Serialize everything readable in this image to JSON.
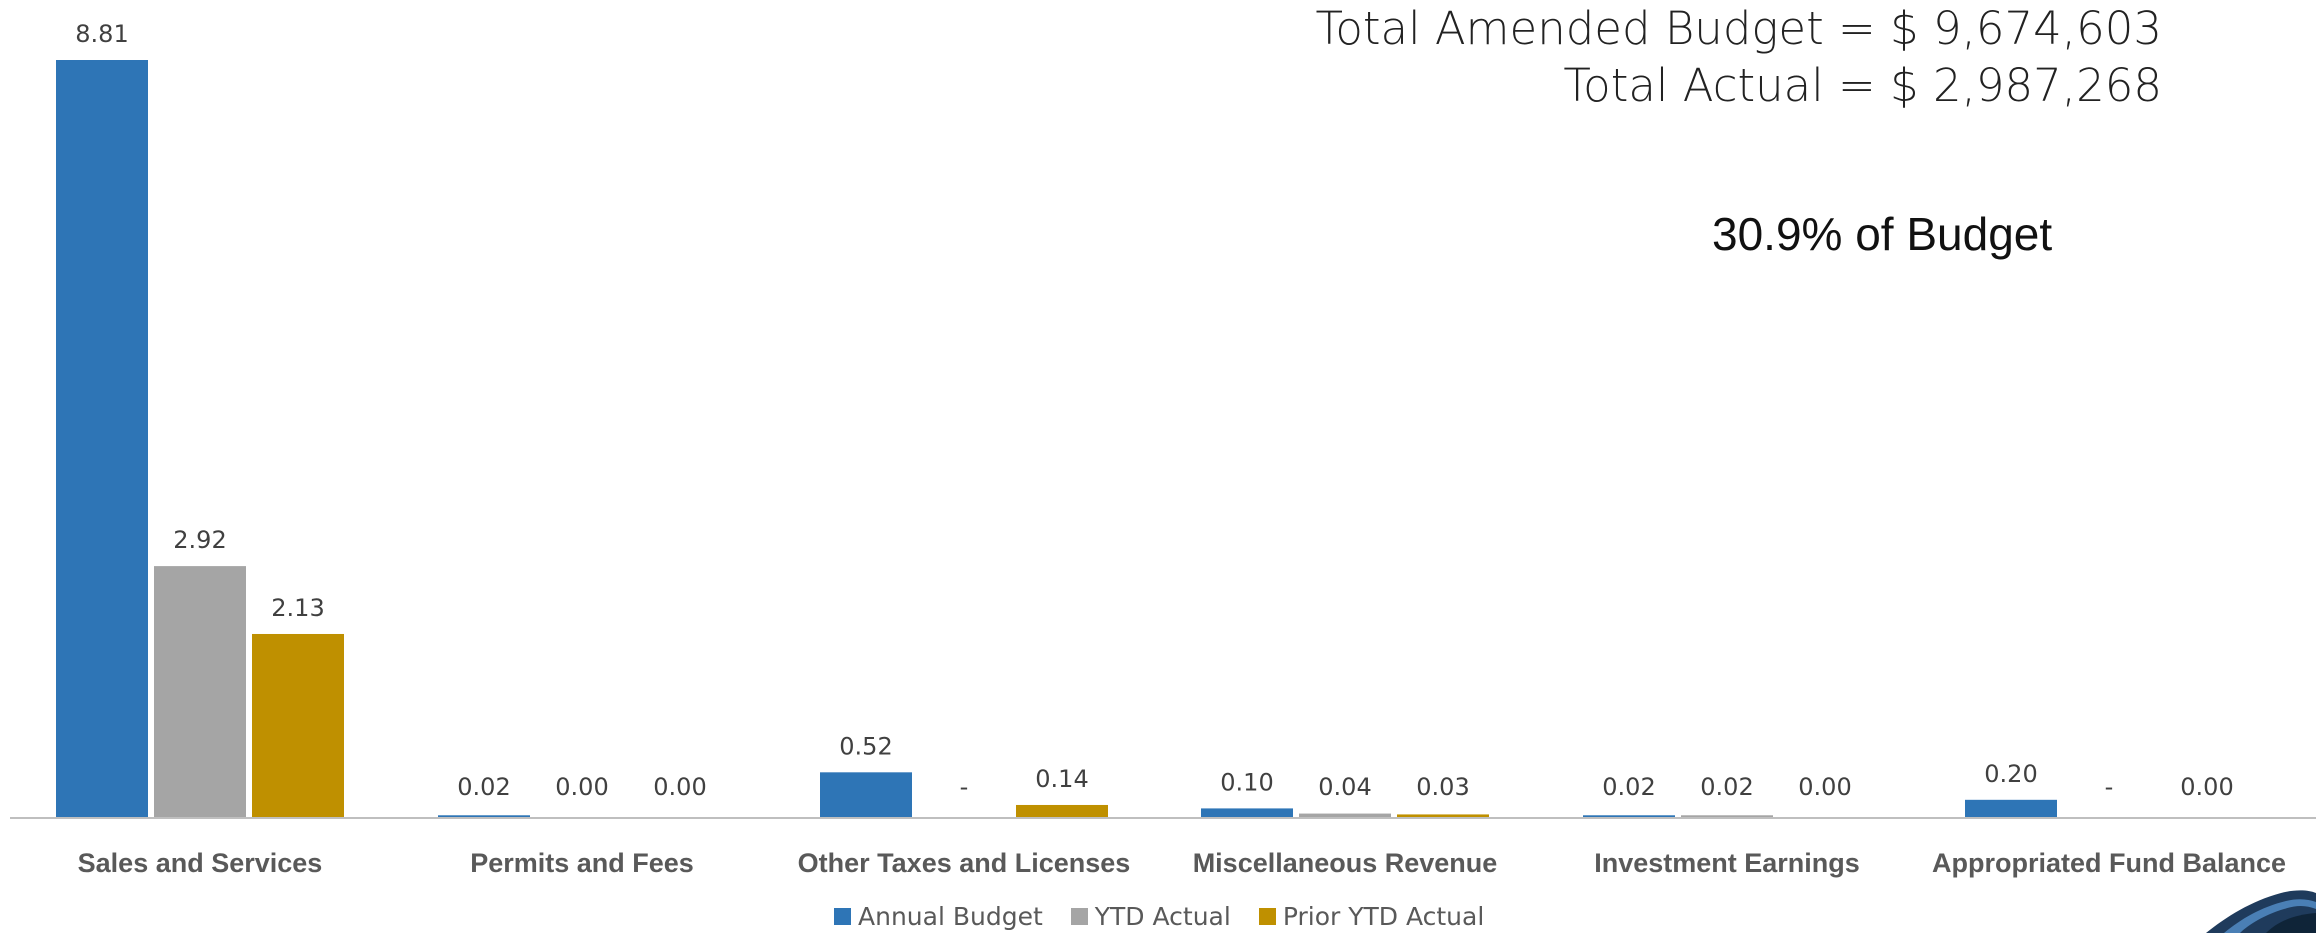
{
  "annotations": {
    "total_budget": "Total Amended Budget = $ 9,674,603",
    "total_actual": "Total Actual = $ 2,987,268",
    "percent": "30.9% of Budget"
  },
  "colors": {
    "annual": "#2E75B6",
    "ytd": "#A5A5A5",
    "prior": "#BF9000",
    "axis": "#BFBFBF"
  },
  "chart_data": {
    "type": "bar",
    "categories": [
      "Sales and Services",
      "Permits and Fees",
      "Other Taxes and Licenses",
      "Miscellaneous Revenue",
      "Investment Earnings",
      "Appropriated Fund Balance"
    ],
    "series": [
      {
        "name": "Annual Budget",
        "values": [
          8.81,
          0.02,
          0.52,
          0.1,
          0.02,
          0.2
        ],
        "labels": [
          "8.81",
          "0.02",
          "0.52",
          "0.10",
          "0.02",
          "0.20"
        ]
      },
      {
        "name": "YTD Actual",
        "values": [
          2.92,
          0.0,
          0,
          0.04,
          0.02,
          0
        ],
        "labels": [
          "2.92",
          "0.00",
          "-",
          "0.04",
          "0.02",
          "-"
        ]
      },
      {
        "name": "Prior YTD Actual",
        "values": [
          2.13,
          0.0,
          0.14,
          0.03,
          0.0,
          0.0
        ],
        "labels": [
          "2.13",
          "0.00",
          "0.14",
          "0.03",
          "0.00",
          "0.00"
        ]
      }
    ],
    "ylim": [
      0,
      8.81
    ],
    "legend_position": "bottom",
    "grid": false
  }
}
